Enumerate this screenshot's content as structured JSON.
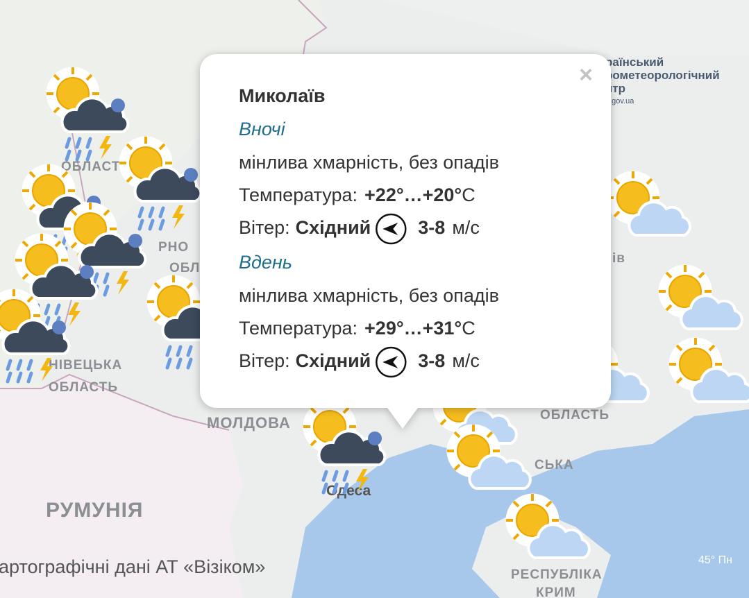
{
  "logo": {
    "line1": "раїнський",
    "line2": "рометеорологічний",
    "line3": "нтр",
    "site": "p.gov.ua"
  },
  "map_labels": {
    "oblast_top": "ОБЛАСТЬ",
    "rivne_part": "РНО",
    "obl_part": "ОБЛ",
    "chernivtsi": "НІВЕЦЬКА",
    "oblast_chernivtsi": "ОБЛАСТЬ",
    "moldova": "МОЛДОВА",
    "romania": "РУМУНІЯ",
    "odesa": "Одеса",
    "oblast_right": "ОБЛАСТЬ",
    "kherson_part": "СЬКА",
    "republic": "РЕСПУБЛІКА",
    "crimea": "КРИМ",
    "kyiv_part": "ів",
    "latitude": "45° Пн",
    "attribution": "артографічні дані АТ «Візіком»"
  },
  "popup": {
    "close": "×",
    "city": "Миколаїв",
    "periods": [
      {
        "title": "Вночі",
        "description": "мінлива хмарність, без опадів",
        "temperature_label": "Температура:",
        "temperature_value": "+22°…+20°",
        "temperature_unit": "С",
        "wind_label": "Вітер:",
        "wind_direction": "Східний",
        "wind_speed": "3-8",
        "wind_unit": "м/с"
      },
      {
        "title": "Вдень",
        "description": "мінлива хмарність, без опадів",
        "temperature_label": "Температура:",
        "temperature_value": "+29°…+31°",
        "temperature_unit": "С",
        "wind_label": "Вітер:",
        "wind_direction": "Східний",
        "wind_speed": "3-8",
        "wind_unit": "м/с"
      }
    ]
  }
}
